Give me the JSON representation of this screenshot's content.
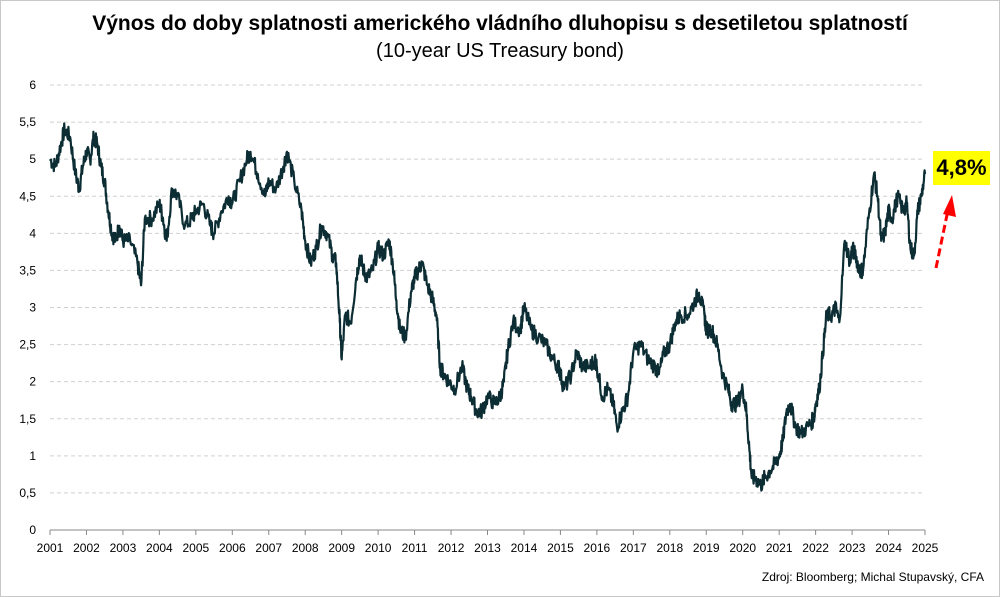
{
  "chart_data": {
    "type": "line",
    "title": "Výnos do doby splatnosti amerického vládního dluhopisu s desetiletou splatností",
    "subtitle": "(10-year US Treasury bond)",
    "source": "Zdroj: Bloomberg; Michal Stupavský, CFA",
    "xlabel": "",
    "ylabel": "",
    "xlim": [
      2001,
      2025
    ],
    "ylim": [
      0,
      6
    ],
    "y_ticks": [
      "0",
      "0,5",
      "1",
      "1,5",
      "2",
      "2,5",
      "3",
      "3,5",
      "4",
      "4,5",
      "5",
      "5,5",
      "6"
    ],
    "x_ticks": [
      "2001",
      "2002",
      "2003",
      "2004",
      "2005",
      "2006",
      "2007",
      "2008",
      "2009",
      "2010",
      "2011",
      "2012",
      "2013",
      "2014",
      "2015",
      "2016",
      "2017",
      "2018",
      "2019",
      "2020",
      "2021",
      "2022",
      "2023",
      "2024",
      "2025"
    ],
    "grid": "horizontal dashed",
    "line_color": "#0b2d33",
    "annotation": {
      "text": "4,8%",
      "background": "#ffff00",
      "arrow_color": "#ff0000"
    },
    "series": [
      {
        "x": [
          2001.0,
          2001.15,
          2001.3,
          2001.4,
          2001.55,
          2001.7,
          2001.8,
          2001.9,
          2002.0,
          2002.1,
          2002.2,
          2002.3,
          2002.4,
          2002.5,
          2002.6,
          2002.7,
          2002.8,
          2002.9,
          2003.0,
          2003.2,
          2003.4,
          2003.5,
          2003.6,
          2003.8,
          2004.0,
          2004.1,
          2004.2,
          2004.35,
          2004.5,
          2004.7,
          2004.9,
          2005.0,
          2005.2,
          2005.4,
          2005.5,
          2005.7,
          2005.9,
          2006.0,
          2006.2,
          2006.4,
          2006.5,
          2006.7,
          2006.9,
          2007.0,
          2007.2,
          2007.4,
          2007.5,
          2007.7,
          2007.9,
          2008.0,
          2008.15,
          2008.3,
          2008.45,
          2008.6,
          2008.75,
          2008.85,
          2008.95,
          2009.0,
          2009.1,
          2009.25,
          2009.4,
          2009.5,
          2009.6,
          2009.7,
          2009.85,
          2010.0,
          2010.15,
          2010.3,
          2010.4,
          2010.5,
          2010.6,
          2010.75,
          2010.9,
          2011.0,
          2011.1,
          2011.2,
          2011.35,
          2011.5,
          2011.6,
          2011.7,
          2011.8,
          2011.95,
          2012.1,
          2012.3,
          2012.45,
          2012.55,
          2012.7,
          2012.85,
          2013.0,
          2013.2,
          2013.35,
          2013.45,
          2013.55,
          2013.7,
          2013.9,
          2014.0,
          2014.2,
          2014.4,
          2014.6,
          2014.8,
          2014.95,
          2015.0,
          2015.1,
          2015.3,
          2015.45,
          2015.6,
          2015.8,
          2015.95,
          2016.0,
          2016.15,
          2016.3,
          2016.45,
          2016.55,
          2016.7,
          2016.85,
          2017.0,
          2017.2,
          2017.4,
          2017.6,
          2017.7,
          2017.85,
          2018.0,
          2018.15,
          2018.3,
          2018.5,
          2018.7,
          2018.8,
          2018.95,
          2019.0,
          2019.15,
          2019.3,
          2019.45,
          2019.6,
          2019.7,
          2019.85,
          2020.0,
          2020.1,
          2020.18,
          2020.25,
          2020.35,
          2020.5,
          2020.6,
          2020.75,
          2020.9,
          2021.0,
          2021.1,
          2021.2,
          2021.3,
          2021.45,
          2021.6,
          2021.8,
          2021.95,
          2022.0,
          2022.1,
          2022.2,
          2022.3,
          2022.45,
          2022.55,
          2022.65,
          2022.8,
          2022.95,
          2023.0,
          2023.1,
          2023.2,
          2023.3,
          2023.45,
          2023.6,
          2023.7,
          2023.8,
          2023.9,
          2024.0,
          2024.1,
          2024.25,
          2024.4,
          2024.5,
          2024.6,
          2024.7,
          2024.8,
          2024.9,
          2025.0
        ],
        "values": [
          5.0,
          4.9,
          5.2,
          5.4,
          5.3,
          4.8,
          4.6,
          4.9,
          5.1,
          5.0,
          5.3,
          5.2,
          4.9,
          4.7,
          4.3,
          4.0,
          3.9,
          4.1,
          3.9,
          3.9,
          3.6,
          3.3,
          4.2,
          4.2,
          4.4,
          4.2,
          3.9,
          4.6,
          4.5,
          4.1,
          4.2,
          4.3,
          4.4,
          4.1,
          4.0,
          4.3,
          4.5,
          4.4,
          4.7,
          5.0,
          5.1,
          4.8,
          4.5,
          4.7,
          4.6,
          4.9,
          5.1,
          4.7,
          4.3,
          3.9,
          3.6,
          3.8,
          4.1,
          4.0,
          3.7,
          3.6,
          2.8,
          2.3,
          2.9,
          2.8,
          3.4,
          3.7,
          3.5,
          3.4,
          3.5,
          3.8,
          3.7,
          3.9,
          3.6,
          3.1,
          2.7,
          2.6,
          3.2,
          3.4,
          3.5,
          3.6,
          3.3,
          3.1,
          2.9,
          2.2,
          2.1,
          2.0,
          1.9,
          2.2,
          1.9,
          1.8,
          1.6,
          1.6,
          1.8,
          1.7,
          1.8,
          2.0,
          2.4,
          2.8,
          2.7,
          3.0,
          2.7,
          2.6,
          2.5,
          2.3,
          2.2,
          2.1,
          1.9,
          2.1,
          2.4,
          2.2,
          2.2,
          2.3,
          2.2,
          1.8,
          1.9,
          1.7,
          1.4,
          1.6,
          1.8,
          2.4,
          2.5,
          2.3,
          2.2,
          2.1,
          2.4,
          2.5,
          2.8,
          2.9,
          2.9,
          3.1,
          3.2,
          2.9,
          2.7,
          2.7,
          2.5,
          2.1,
          1.9,
          1.7,
          1.7,
          1.9,
          1.6,
          1.1,
          0.7,
          0.7,
          0.6,
          0.7,
          0.8,
          0.9,
          1.0,
          1.2,
          1.6,
          1.7,
          1.4,
          1.3,
          1.4,
          1.5,
          1.7,
          1.9,
          2.4,
          2.9,
          2.9,
          3.0,
          2.8,
          3.9,
          3.6,
          3.8,
          3.7,
          3.5,
          3.5,
          4.2,
          4.8,
          4.5,
          3.9,
          4.0,
          4.3,
          4.2,
          4.5,
          4.3,
          4.4,
          3.8,
          3.7,
          4.3,
          4.5,
          4.8
        ]
      }
    ]
  }
}
